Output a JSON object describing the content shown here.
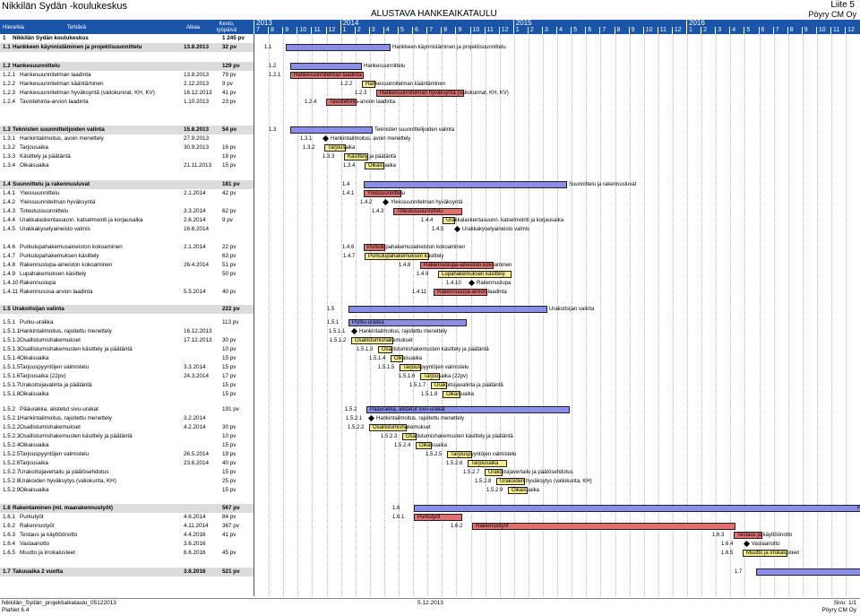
{
  "header": {
    "title": "Nikkilän Sydän -koulukeskus",
    "center_title": "ALUSTAVA HANKEAIKATAULU",
    "attachment": "Liite 5",
    "company": "Pöyry CM Oy"
  },
  "columns": {
    "hierarchy": "Hierarkia",
    "task": "Tehtävä",
    "start": "Alkaa",
    "duration": "Kesto, työpäivä"
  },
  "timeline": {
    "years": [
      "2013",
      "2014",
      "2015",
      "2016"
    ],
    "months": [
      "7",
      "8",
      "9",
      "10",
      "11",
      "12",
      "1",
      "2",
      "3",
      "4",
      "5",
      "6",
      "7",
      "8",
      "9",
      "10",
      "11",
      "12",
      "1",
      "2",
      "3",
      "4",
      "5",
      "6",
      "7",
      "8",
      "9",
      "10",
      "11",
      "12",
      "1",
      "2",
      "3",
      "4",
      "5",
      "6",
      "7",
      "8",
      "9",
      "10",
      "11",
      "12"
    ]
  },
  "tasks": [
    {
      "id": "1",
      "name": "Nikkilän Sydän koulukeskus",
      "start": "",
      "dur": "1 245 pv",
      "sum": true,
      "bar": "none",
      "label": ""
    },
    {
      "id": "1.1",
      "name": "Hankkeen käynnistäminen ja projektisuunnittelu",
      "start": "13.8.2013",
      "dur": "32 pv",
      "sum": true,
      "bar": "blue",
      "label": "Hankkeen käynnistäminen ja projektisuunnittelu"
    },
    {
      "id": "1.2",
      "name": "Hankesuunnittelu",
      "start": "",
      "dur": "129 pv",
      "sum": true,
      "bar": "blue",
      "label": "Hankesuunnittelu"
    },
    {
      "id": "1.2.1",
      "name": "Hankesuunnitelman laadinta",
      "start": "13.8.2013",
      "dur": "79 pv",
      "sum": false,
      "bar": "red",
      "label": "Hankesuunnitelman laadinta"
    },
    {
      "id": "1.2.2",
      "name": "Hankesuunnitelman kääntäminen",
      "start": "2.12.2013",
      "dur": "9 pv",
      "sum": false,
      "bar": "yel",
      "label": "Hankesuunnitelman kääntäminen"
    },
    {
      "id": "1.2.3",
      "name": "Hankesuunnitelman hyväksyntä (valiokunnat, KH, KV)",
      "start": "16.12.2013",
      "dur": "41 pv",
      "sum": false,
      "bar": "red",
      "label": "Hankesuunnitelman hyväksyntä (valiokunnat, KH, KV)"
    },
    {
      "id": "1.2.4",
      "name": "Tavoitehinta-arvion laadinta",
      "start": "1.10.2013",
      "dur": "23 pv",
      "sum": false,
      "bar": "red",
      "label": "Tavoitehinta-arvion laadinta"
    },
    {
      "id": "1.3",
      "name": "Teknisten suunnittelijoiden valinta",
      "start": "15.8.2013",
      "dur": "54 pv",
      "sum": true,
      "bar": "blue",
      "label": "Teknisten suunnittelijoiden valinta"
    },
    {
      "id": "1.3.1",
      "name": "Hankintailmoitus, avoin menettely",
      "start": "27.9.2013",
      "dur": "",
      "sum": false,
      "bar": "dia",
      "label": "Hankintailmoitus, avoin menettely"
    },
    {
      "id": "1.3.2",
      "name": "Tarjousaika",
      "start": "30.9.2013",
      "dur": "16 pv",
      "sum": false,
      "bar": "yel",
      "label": "Tarjousaika"
    },
    {
      "id": "1.3.3",
      "name": "Käsittely ja päätäntä",
      "start": "",
      "dur": "19 pv",
      "sum": false,
      "bar": "yel",
      "label": "Käsittely ja päätäntä"
    },
    {
      "id": "1.3.4",
      "name": "Oikaisuaika",
      "start": "21.11.2013",
      "dur": "15 pv",
      "sum": false,
      "bar": "yel",
      "label": "Oikaisuaika"
    },
    {
      "id": "1.4",
      "name": "Suunnittelu ja rakennusluvat",
      "start": "",
      "dur": "181 pv",
      "sum": true,
      "bar": "blue",
      "label": "Suunnittelu ja rakennusluvat"
    },
    {
      "id": "1.4.1",
      "name": "Yleissuunnittelu",
      "start": "2.1.2014",
      "dur": "42 pv",
      "sum": false,
      "bar": "red",
      "label": "Yleissuunnittelu"
    },
    {
      "id": "1.4.2",
      "name": "Yleissuunnitelman hyväksyntä",
      "start": "",
      "dur": "",
      "sum": false,
      "bar": "dia",
      "label": "Yleissuunnitelman hyväksyntä"
    },
    {
      "id": "1.4.3",
      "name": "Toteutussuunnittelu",
      "start": "3.3.2014",
      "dur": "62 pv",
      "sum": false,
      "bar": "red",
      "label": "Toteutussuunnittelu"
    },
    {
      "id": "1.4.4",
      "name": "Urakkalaskentasuunn. katselmointi ja korjausaika",
      "start": "2.6.2014",
      "dur": "9 pv",
      "sum": false,
      "bar": "yel",
      "label": "Urakkalaskentasuunn. katselmointi ja korjausaika"
    },
    {
      "id": "1.4.5",
      "name": "Urakkakyselyaineisto valmis",
      "start": "16.6.2014",
      "dur": "",
      "sum": false,
      "bar": "dia",
      "label": "Urakkakyselyaineisto valmis"
    },
    {
      "id": "1.4.6",
      "name": "Purkulupahakemusaineiston kokoaminen",
      "start": "2.1.2014",
      "dur": "22 pv",
      "sum": false,
      "bar": "red",
      "label": "Purkulupahakemusaineiston kokoaminen"
    },
    {
      "id": "1.4.7",
      "name": "Purkulupahakemuksen käsittely",
      "start": "",
      "dur": "63 pv",
      "sum": false,
      "bar": "yel",
      "label": "Purkulupahakemuksen käsittely"
    },
    {
      "id": "1.4.8",
      "name": "Rakennuslupa-aineiston kokoaminen",
      "start": "26.4.2014",
      "dur": "51 pv",
      "sum": false,
      "bar": "red",
      "label": "Rakennuslupa-aineiston kokoaminen"
    },
    {
      "id": "1.4.9",
      "name": "Lupahakemuksen käsittely",
      "start": "",
      "dur": "50 pv",
      "sum": false,
      "bar": "yel",
      "label": "Lupahakemuksen käsittely"
    },
    {
      "id": "1.4.10",
      "name": "Rakennuslupa",
      "start": "",
      "dur": "",
      "sum": false,
      "bar": "dia",
      "label": "Rakennuslupa"
    },
    {
      "id": "1.4.11",
      "name": "Rakennusosa-arvion laadinta",
      "start": "5.5.2014",
      "dur": "40 pv",
      "sum": false,
      "bar": "red",
      "label": "Rakennusosa-arvion laadinta"
    },
    {
      "id": "1.5",
      "name": "Urakoitsijan valinta",
      "start": "",
      "dur": "222 pv",
      "sum": true,
      "bar": "blue",
      "label": "Urakoitsijan valinta"
    },
    {
      "id": "1.5.1",
      "name": "Purku-urakka",
      "start": "",
      "dur": "113 pv",
      "sum": false,
      "bar": "blue",
      "label": "Purku-urakka"
    },
    {
      "id": "1.5.1.1",
      "name": "Hankintailmoitus, rajoitettu menettely",
      "start": "16.12.2013",
      "dur": "",
      "sum": false,
      "bar": "dia",
      "label": "Hankintailmoitus, rajoitettu menettely"
    },
    {
      "id": "1.5.1.2",
      "name": "Osallistumishakemukset",
      "start": "17.12.2013",
      "dur": "30 pv",
      "sum": false,
      "bar": "yel",
      "label": "Osallistumishakemukset"
    },
    {
      "id": "1.5.1.3",
      "name": "Osallistumishakemusten käsittely ja päätäntä",
      "start": "",
      "dur": "10 pv",
      "sum": false,
      "bar": "yel",
      "label": "Osallistumishakemusten käsittely ja päätäntä"
    },
    {
      "id": "1.5.1.4",
      "name": "Oikaisuaika",
      "start": "",
      "dur": "15 pv",
      "sum": false,
      "bar": "yel",
      "label": "Oikaisuaika"
    },
    {
      "id": "1.5.1.5",
      "name": "Tarjouspyyntöjen valmistelu",
      "start": "3.3.2014",
      "dur": "15 pv",
      "sum": false,
      "bar": "yel",
      "label": "Tarjouspyyntöjen valmistelu"
    },
    {
      "id": "1.5.1.6",
      "name": "Tarjousaika (22pv)",
      "start": "24.3.2014",
      "dur": "17 pv",
      "sum": false,
      "bar": "yel",
      "label": "Tarjousaika (22pv)"
    },
    {
      "id": "1.5.1.7",
      "name": "Urakoitsijavalinta ja päätäntä",
      "start": "",
      "dur": "15 pv",
      "sum": false,
      "bar": "yel",
      "label": "Urakoitsijavalinta ja päätäntä"
    },
    {
      "id": "1.5.1.8",
      "name": "Oikaisuaika",
      "start": "",
      "dur": "15 pv",
      "sum": false,
      "bar": "yel",
      "label": "Oikaisuaika"
    },
    {
      "id": "1.5.2",
      "name": "Pääurakka, alistetut sivu-urakat",
      "start": "",
      "dur": "191 pv",
      "sum": false,
      "bar": "blue",
      "label": "Pääurakka, alistetut sivu-urakat"
    },
    {
      "id": "1.5.2.1",
      "name": "Hankintailmoitus, rajoitettu menettely",
      "start": "3.2.2014",
      "dur": "",
      "sum": false,
      "bar": "dia",
      "label": "Hankintailmoitus, rajoitettu menettely"
    },
    {
      "id": "1.5.2.2",
      "name": "Osallistumishakemukset",
      "start": "4.2.2014",
      "dur": "30 pv",
      "sum": false,
      "bar": "yel",
      "label": "Osallistumishakemukset"
    },
    {
      "id": "1.5.2.3",
      "name": "Osallistumishakemusten käsittely ja päätäntä",
      "start": "",
      "dur": "10 pv",
      "sum": false,
      "bar": "yel",
      "label": "Osallistumishakemusten käsittely ja päätäntä"
    },
    {
      "id": "1.5.2.4",
      "name": "Oikaisuaika",
      "start": "",
      "dur": "15 pv",
      "sum": false,
      "bar": "yel",
      "label": "Oikaisuaika"
    },
    {
      "id": "1.5.2.5",
      "name": "Tarjouspyyntöjen valmistelu",
      "start": "26.5.2014",
      "dur": "19 pv",
      "sum": false,
      "bar": "yel",
      "label": "Tarjouspyyntöjen valmistelu"
    },
    {
      "id": "1.5.2.6",
      "name": "Tarjousaika",
      "start": "23.6.2014",
      "dur": "40 pv",
      "sum": false,
      "bar": "yel",
      "label": "Tarjousaika"
    },
    {
      "id": "1.5.2.7",
      "name": "Urakoitsijavertailu ja päätösehdotus",
      "start": "",
      "dur": "15 pv",
      "sum": false,
      "bar": "yel",
      "label": "Urakoitsijavertailu ja päätösehdotus"
    },
    {
      "id": "1.5.2.8",
      "name": "Urakoiden hyväksytys (valiokunta, KH)",
      "start": "",
      "dur": "25 pv",
      "sum": false,
      "bar": "yel",
      "label": "Urakoiden hyväksytys (valiokunta, KH)"
    },
    {
      "id": "1.5.2.9",
      "name": "Oikaisuaika",
      "start": "",
      "dur": "15 pv",
      "sum": false,
      "bar": "yel",
      "label": "Oikaisuaika"
    },
    {
      "id": "1.6",
      "name": "Rakentaminen (ml. maarakennustyöt)",
      "start": "",
      "dur": "567 pv",
      "sum": true,
      "bar": "blue",
      "label": "Rakentaminen (ml. maarakennu"
    },
    {
      "id": "1.6.1",
      "name": "Purkutyöt",
      "start": "4.6.2014",
      "dur": "84 pv",
      "sum": false,
      "bar": "red",
      "label": "Purkutyöt"
    },
    {
      "id": "1.6.2",
      "name": "Rakennustyöt",
      "start": "4.11.2014",
      "dur": "367 pv",
      "sum": false,
      "bar": "red",
      "label": "Rakennustyöt"
    },
    {
      "id": "1.6.3",
      "name": "Testaus ja käyttöönotto",
      "start": "4.4.2016",
      "dur": "41 pv",
      "sum": false,
      "bar": "red",
      "label": "Testaus ja käyttöönotto"
    },
    {
      "id": "1.6.4",
      "name": "Vastaanotto",
      "start": "3.6.2016",
      "dur": "",
      "sum": false,
      "bar": "dia",
      "label": "Vastaanotto"
    },
    {
      "id": "1.6.5",
      "name": "Muutto ja irrokalusteet",
      "start": "6.6.2016",
      "dur": "45 pv",
      "sum": false,
      "bar": "yel",
      "label": "Muutto ja irrokalusteet"
    },
    {
      "id": "1.7",
      "name": "Takuuaika 2 vuotta",
      "start": "3.6.2016",
      "dur": "521 pv",
      "sum": true,
      "bar": "blue",
      "label": ""
    }
  ],
  "footer": {
    "file": "Nikkilän_Sydän_projektiaikataulu_05122013",
    "tool": "PlaNet 6.4",
    "date": "5.12.2013",
    "page": "Sivu: 1/1",
    "company": "Pöyry CM Oy"
  }
}
